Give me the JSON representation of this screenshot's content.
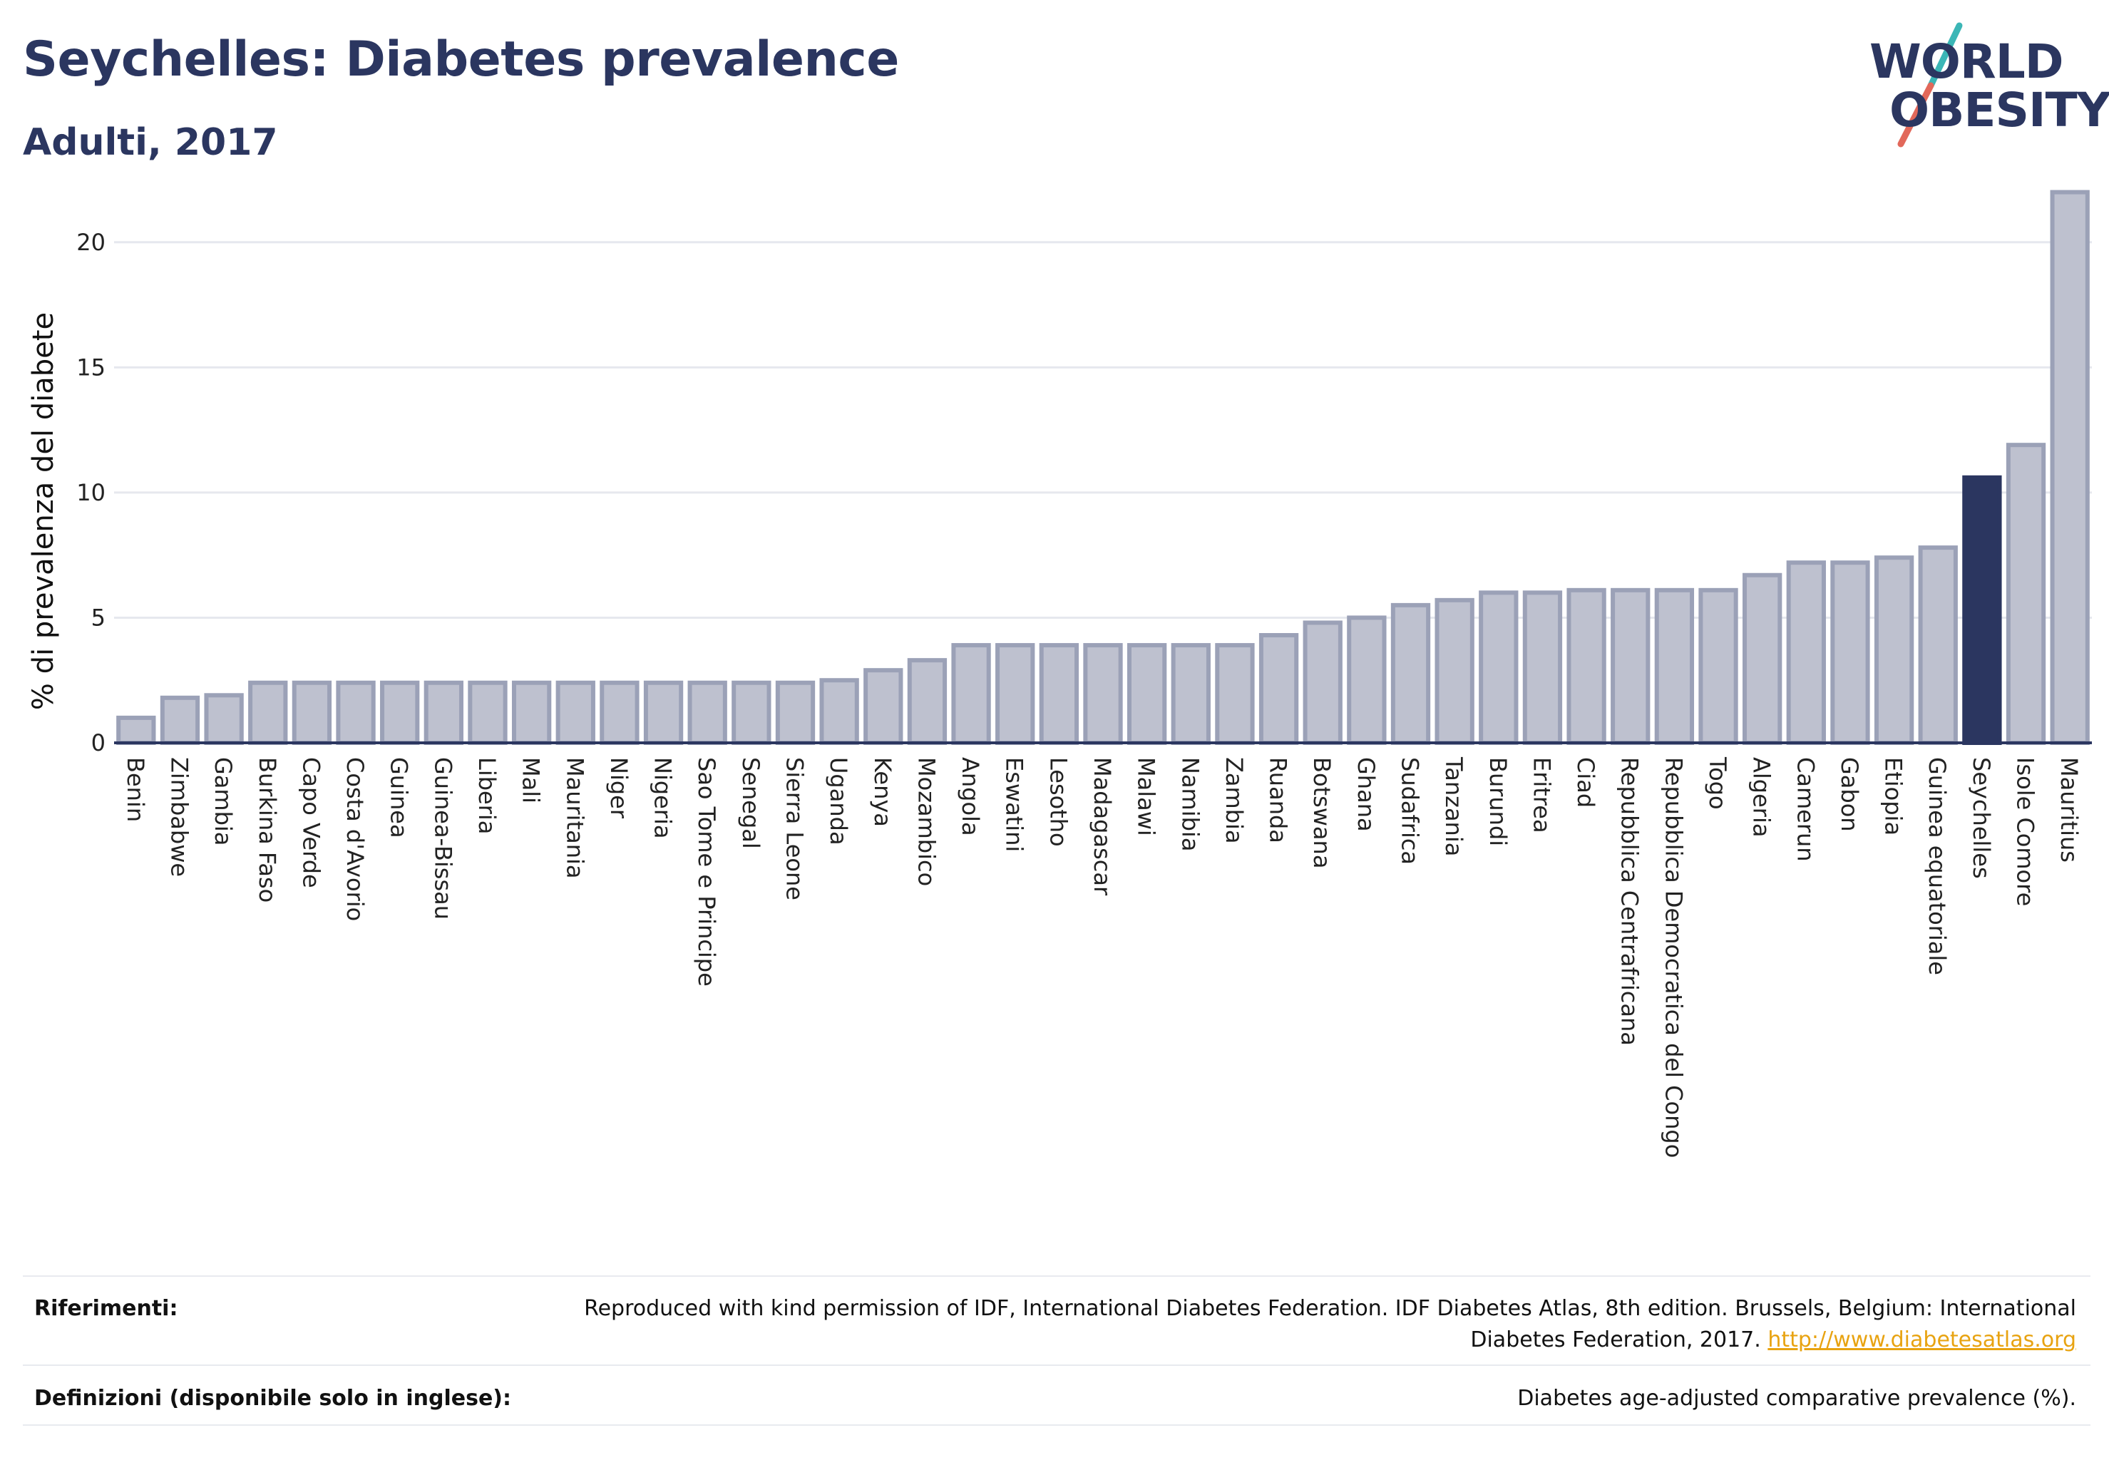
{
  "header": {
    "title": "Seychelles: Diabetes prevalence",
    "subtitle": "Adulti, 2017"
  },
  "logo": {
    "line1": "WORLD",
    "line2": "OBESITY",
    "colors": {
      "text": "#2b3660",
      "slash_top": "#3bb6b6",
      "slash_bottom": "#e2685a"
    }
  },
  "chart_data": {
    "type": "bar",
    "title": "",
    "xlabel": "",
    "ylabel": "% di prevalenza del diabete",
    "ylim": [
      0,
      22.5
    ],
    "yticks": [
      0,
      5,
      10,
      15,
      20
    ],
    "grid": true,
    "highlight": "Seychelles",
    "colors": {
      "bar": "#bec1cf",
      "bar_border": "#9ba1b7",
      "highlight": "#2b3660"
    },
    "categories": [
      "Benin",
      "Zimbabwe",
      "Gambia",
      "Burkina Faso",
      "Capo Verde",
      "Costa d'Avorio",
      "Guinea",
      "Guinea-Bissau",
      "Liberia",
      "Mali",
      "Mauritania",
      "Niger",
      "Nigeria",
      "Sao Tome e Principe",
      "Senegal",
      "Sierra Leone",
      "Uganda",
      "Kenya",
      "Mozambico",
      "Angola",
      "Eswatini",
      "Lesotho",
      "Madagascar",
      "Malawi",
      "Namibia",
      "Zambia",
      "Ruanda",
      "Botswana",
      "Ghana",
      "Sudafrica",
      "Tanzania",
      "Burundi",
      "Eritrea",
      "Ciad",
      "Repubblica Centrafricana",
      "Repubblica Democratica del Congo",
      "Togo",
      "Algeria",
      "Camerun",
      "Gabon",
      "Etiopia",
      "Guinea equatoriale",
      "Seychelles",
      "Isole Comore",
      "Mauritius"
    ],
    "values": [
      1.0,
      1.8,
      1.9,
      2.4,
      2.4,
      2.4,
      2.4,
      2.4,
      2.4,
      2.4,
      2.4,
      2.4,
      2.4,
      2.4,
      2.4,
      2.4,
      2.5,
      2.9,
      3.3,
      3.9,
      3.9,
      3.9,
      3.9,
      3.9,
      3.9,
      3.9,
      4.3,
      4.8,
      5.0,
      5.5,
      5.7,
      6.0,
      6.0,
      6.1,
      6.1,
      6.1,
      6.1,
      6.7,
      7.2,
      7.2,
      7.4,
      7.8,
      10.6,
      11.9,
      22.0
    ]
  },
  "footer": {
    "references_label": "Riferimenti:",
    "references_text": "Reproduced with kind permission of IDF, International Diabetes Federation. IDF Diabetes Atlas, 8th edition. Brussels, Belgium: International Diabetes Federation, 2017.",
    "references_link": "http://www.diabetesatlas.org",
    "definitions_label": "Definizioni (disponibile solo in inglese):",
    "definitions_text": "Diabetes age-adjusted comparative prevalence (%)."
  }
}
